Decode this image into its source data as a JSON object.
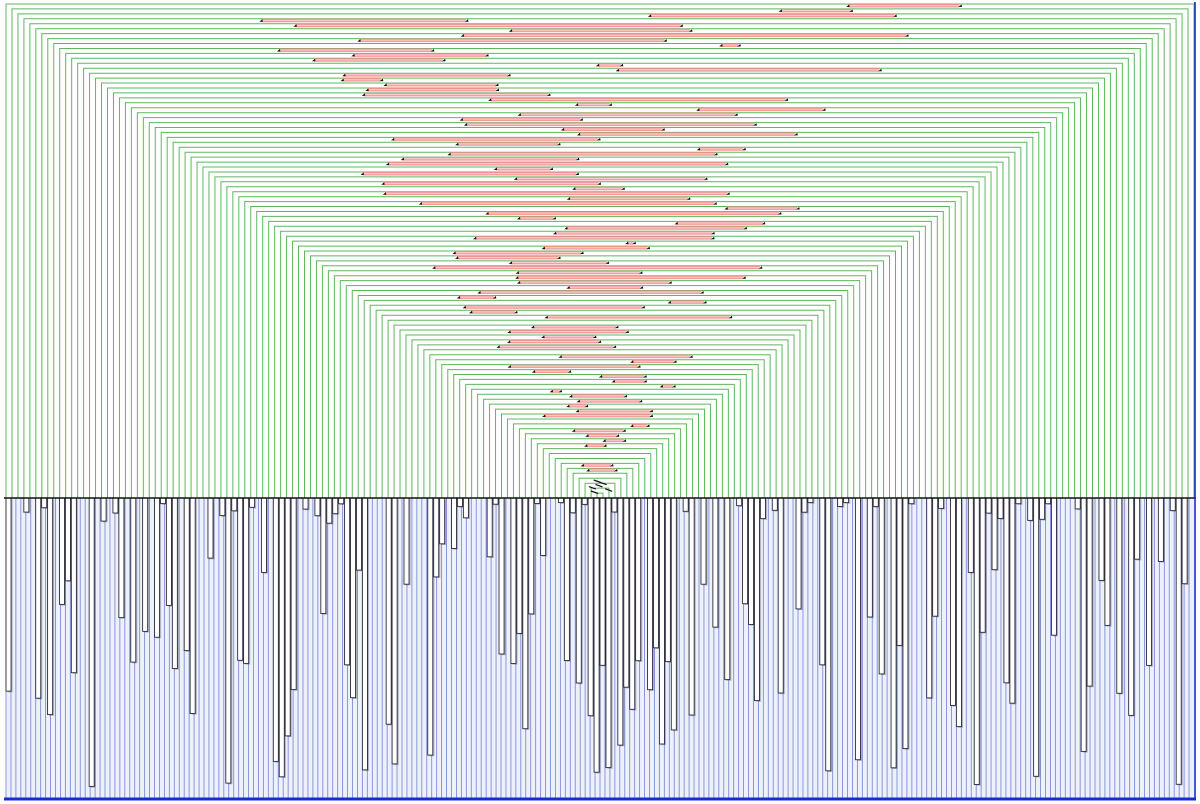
{
  "visualization": {
    "type": "cross-linking-diagram",
    "pair_count": 100,
    "bar_count": 200,
    "colors": {
      "background": "#ffffff",
      "arc_stroke": "#5cb85c",
      "band_fill": "#f28b8b",
      "band_core": "#ffe4e4",
      "marker": "#111111",
      "baseline": "#111111",
      "bar_stroke": "#2b2b3a",
      "bar_fill": "#ffffff",
      "bar_shadow": "#6a6a78",
      "hatch_line": "#7d8ed6",
      "hatch_fill": "#eef1fb",
      "bottom_rule": "#1a2ccc",
      "right_edge": "#1a2ccc"
    }
  }
}
